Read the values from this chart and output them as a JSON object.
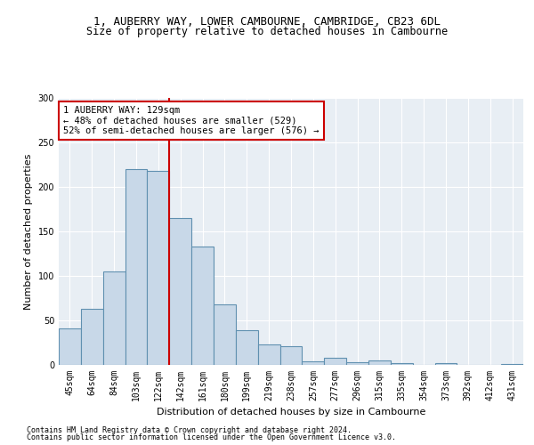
{
  "title_line1": "1, AUBERRY WAY, LOWER CAMBOURNE, CAMBRIDGE, CB23 6DL",
  "title_line2": "Size of property relative to detached houses in Cambourne",
  "xlabel": "Distribution of detached houses by size in Cambourne",
  "ylabel": "Number of detached properties",
  "footnote1": "Contains HM Land Registry data © Crown copyright and database right 2024.",
  "footnote2": "Contains public sector information licensed under the Open Government Licence v3.0.",
  "categories": [
    "45sqm",
    "64sqm",
    "84sqm",
    "103sqm",
    "122sqm",
    "142sqm",
    "161sqm",
    "180sqm",
    "199sqm",
    "219sqm",
    "238sqm",
    "257sqm",
    "277sqm",
    "296sqm",
    "315sqm",
    "335sqm",
    "354sqm",
    "373sqm",
    "392sqm",
    "412sqm",
    "431sqm"
  ],
  "values": [
    41,
    63,
    105,
    220,
    218,
    165,
    133,
    68,
    39,
    23,
    21,
    4,
    8,
    3,
    5,
    2,
    0,
    2,
    0,
    0,
    1
  ],
  "bar_color": "#c8d8e8",
  "bar_edge_color": "#6090b0",
  "vline_x": 4.5,
  "vline_color": "#cc0000",
  "annotation_text": "1 AUBERRY WAY: 129sqm\n← 48% of detached houses are smaller (529)\n52% of semi-detached houses are larger (576) →",
  "annotation_box_color": "#ffffff",
  "annotation_box_edge": "#cc0000",
  "ylim": [
    0,
    300
  ],
  "yticks": [
    0,
    50,
    100,
    150,
    200,
    250,
    300
  ],
  "bg_color": "#e8eef4",
  "fig_bg": "#ffffff",
  "grid_color": "#ffffff",
  "title1_fontsize": 9,
  "title2_fontsize": 8.5,
  "axis_label_fontsize": 8,
  "tick_fontsize": 7,
  "annotation_fontsize": 7.5,
  "footnote_fontsize": 6
}
